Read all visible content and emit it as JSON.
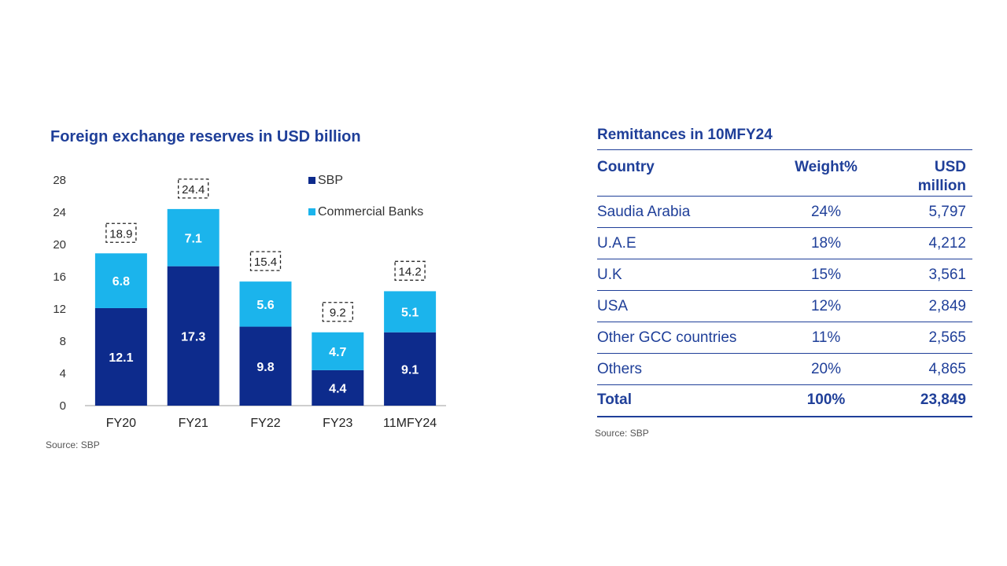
{
  "chart_data": {
    "type": "bar",
    "stacked": true,
    "title": "Foreign exchange reserves in USD billion",
    "categories": [
      "FY20",
      "FY21",
      "FY22",
      "FY23",
      "11MFY24"
    ],
    "series": [
      {
        "name": "SBP",
        "values": [
          12.1,
          17.3,
          9.8,
          4.4,
          9.1
        ],
        "color": "#0d2b8c"
      },
      {
        "name": "Commercial Banks",
        "values": [
          6.8,
          7.1,
          5.6,
          4.7,
          5.1
        ],
        "color": "#1bb4ec"
      }
    ],
    "totals": [
      "18.9",
      "24.4",
      "15.4",
      "9.2",
      "14.2"
    ],
    "ylim": [
      0,
      28
    ],
    "yticks": [
      0,
      4,
      8,
      12,
      16,
      20,
      24,
      28
    ],
    "grid": false,
    "legend": "top-right",
    "source": "Source: SBP"
  },
  "table": {
    "title": "Remittances in 10MFY24",
    "headers": {
      "country": "Country",
      "weight": "Weight%",
      "usd_line1": "USD",
      "usd_line2": "million"
    },
    "rows": [
      {
        "country": "Saudia Arabia",
        "weight": "24%",
        "usd": "5,797"
      },
      {
        "country": "U.A.E",
        "weight": "18%",
        "usd": "4,212"
      },
      {
        "country": "U.K",
        "weight": "15%",
        "usd": "3,561"
      },
      {
        "country": "USA",
        "weight": "12%",
        "usd": "2,849"
      },
      {
        "country": "Other GCC countries",
        "weight": "11%",
        "usd": "2,565"
      },
      {
        "country": "Others",
        "weight": "20%",
        "usd": "4,865"
      }
    ],
    "total": {
      "country": "Total",
      "weight": "100%",
      "usd": "23,849"
    },
    "source": "Source: SBP"
  }
}
